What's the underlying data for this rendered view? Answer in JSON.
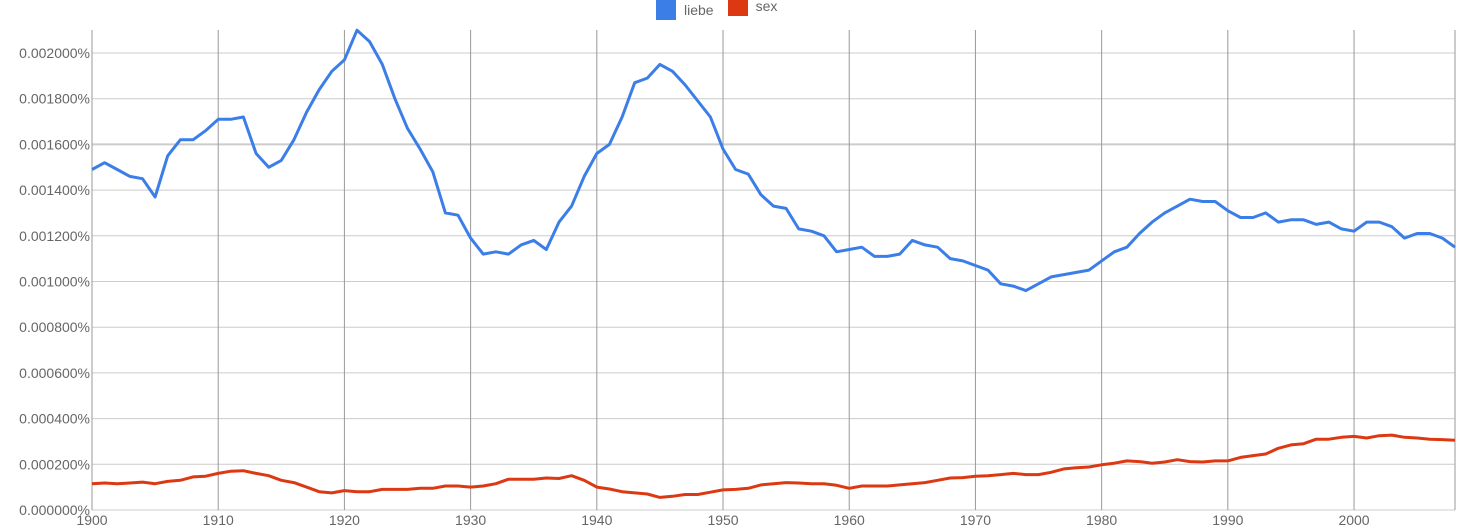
{
  "chart_data": {
    "type": "line",
    "title": "",
    "xlabel": "",
    "ylabel": "",
    "xlim": [
      1900,
      2008
    ],
    "ylim": [
      0,
      0.0021
    ],
    "x_ticks": [
      1900,
      1910,
      1920,
      1930,
      1940,
      1950,
      1960,
      1970,
      1980,
      1990,
      2000
    ],
    "x_tick_labels": [
      "1900",
      "1910",
      "1920",
      "1930",
      "1940",
      "1950",
      "1960",
      "1970",
      "1980",
      "1990",
      "2000"
    ],
    "y_ticks": [
      0,
      0.0002,
      0.0004,
      0.0006,
      0.0008,
      0.001,
      0.0012,
      0.0014,
      0.0016,
      0.0018,
      0.002
    ],
    "y_tick_labels": [
      "0.000000%",
      "0.000200%",
      "0.000400%",
      "0.000600%",
      "0.000800%",
      "0.001000%",
      "0.001200%",
      "0.001400%",
      "0.001600%",
      "0.001800%",
      "0.002000%"
    ],
    "grid": true,
    "legend_position": "top",
    "series": [
      {
        "name": "liebe",
        "color": "#3b7ee8",
        "points": [
          [
            1900,
            0.00149
          ],
          [
            1901,
            0.00152
          ],
          [
            1902,
            0.00149
          ],
          [
            1903,
            0.00146
          ],
          [
            1904,
            0.00145
          ],
          [
            1905,
            0.00137
          ],
          [
            1906,
            0.00155
          ],
          [
            1907,
            0.00162
          ],
          [
            1908,
            0.00162
          ],
          [
            1909,
            0.00166
          ],
          [
            1910,
            0.00171
          ],
          [
            1911,
            0.00171
          ],
          [
            1912,
            0.00172
          ],
          [
            1913,
            0.00156
          ],
          [
            1914,
            0.0015
          ],
          [
            1915,
            0.00153
          ],
          [
            1916,
            0.00162
          ],
          [
            1917,
            0.00174
          ],
          [
            1918,
            0.00184
          ],
          [
            1919,
            0.00192
          ],
          [
            1920,
            0.00197
          ],
          [
            1921,
            0.0021
          ],
          [
            1922,
            0.00205
          ],
          [
            1923,
            0.00195
          ],
          [
            1924,
            0.0018
          ],
          [
            1925,
            0.00167
          ],
          [
            1926,
            0.00158
          ],
          [
            1927,
            0.00148
          ],
          [
            1928,
            0.0013
          ],
          [
            1929,
            0.00129
          ],
          [
            1930,
            0.00119
          ],
          [
            1931,
            0.00112
          ],
          [
            1932,
            0.00113
          ],
          [
            1933,
            0.00112
          ],
          [
            1934,
            0.00116
          ],
          [
            1935,
            0.00118
          ],
          [
            1936,
            0.00114
          ],
          [
            1937,
            0.00126
          ],
          [
            1938,
            0.00133
          ],
          [
            1939,
            0.00146
          ],
          [
            1940,
            0.00156
          ],
          [
            1941,
            0.0016
          ],
          [
            1942,
            0.00172
          ],
          [
            1943,
            0.00187
          ],
          [
            1944,
            0.00189
          ],
          [
            1945,
            0.00195
          ],
          [
            1946,
            0.00192
          ],
          [
            1947,
            0.00186
          ],
          [
            1948,
            0.00179
          ],
          [
            1949,
            0.00172
          ],
          [
            1950,
            0.00158
          ],
          [
            1951,
            0.00149
          ],
          [
            1952,
            0.00147
          ],
          [
            1953,
            0.00138
          ],
          [
            1954,
            0.00133
          ],
          [
            1955,
            0.00132
          ],
          [
            1956,
            0.00123
          ],
          [
            1957,
            0.00122
          ],
          [
            1958,
            0.0012
          ],
          [
            1959,
            0.00113
          ],
          [
            1960,
            0.00114
          ],
          [
            1961,
            0.00115
          ],
          [
            1962,
            0.00111
          ],
          [
            1963,
            0.00111
          ],
          [
            1964,
            0.00112
          ],
          [
            1965,
            0.00118
          ],
          [
            1966,
            0.00116
          ],
          [
            1967,
            0.00115
          ],
          [
            1968,
            0.0011
          ],
          [
            1969,
            0.00109
          ],
          [
            1970,
            0.00107
          ],
          [
            1971,
            0.00105
          ],
          [
            1972,
            0.00099
          ],
          [
            1973,
            0.00098
          ],
          [
            1974,
            0.00096
          ],
          [
            1975,
            0.00099
          ],
          [
            1976,
            0.00102
          ],
          [
            1977,
            0.00103
          ],
          [
            1978,
            0.00104
          ],
          [
            1979,
            0.00105
          ],
          [
            1980,
            0.00109
          ],
          [
            1981,
            0.00113
          ],
          [
            1982,
            0.00115
          ],
          [
            1983,
            0.00121
          ],
          [
            1984,
            0.00126
          ],
          [
            1985,
            0.0013
          ],
          [
            1986,
            0.00133
          ],
          [
            1987,
            0.00136
          ],
          [
            1988,
            0.00135
          ],
          [
            1989,
            0.00135
          ],
          [
            1990,
            0.00131
          ],
          [
            1991,
            0.00128
          ],
          [
            1992,
            0.00128
          ],
          [
            1993,
            0.0013
          ],
          [
            1994,
            0.00126
          ],
          [
            1995,
            0.00127
          ],
          [
            1996,
            0.00127
          ],
          [
            1997,
            0.00125
          ],
          [
            1998,
            0.00126
          ],
          [
            1999,
            0.00123
          ],
          [
            2000,
            0.00122
          ],
          [
            2001,
            0.00126
          ],
          [
            2002,
            0.00126
          ],
          [
            2003,
            0.00124
          ],
          [
            2004,
            0.00119
          ],
          [
            2005,
            0.00121
          ],
          [
            2006,
            0.00121
          ],
          [
            2007,
            0.00119
          ],
          [
            2008,
            0.00115
          ]
        ]
      },
      {
        "name": "sex",
        "color": "#dc3912",
        "points": [
          [
            1900,
            0.000115
          ],
          [
            1901,
            0.000118
          ],
          [
            1902,
            0.000115
          ],
          [
            1903,
            0.000118
          ],
          [
            1904,
            0.000122
          ],
          [
            1905,
            0.000115
          ],
          [
            1906,
            0.000125
          ],
          [
            1907,
            0.00013
          ],
          [
            1908,
            0.000145
          ],
          [
            1909,
            0.000148
          ],
          [
            1910,
            0.00016
          ],
          [
            1911,
            0.00017
          ],
          [
            1912,
            0.000172
          ],
          [
            1913,
            0.00016
          ],
          [
            1914,
            0.00015
          ],
          [
            1915,
            0.00013
          ],
          [
            1916,
            0.00012
          ],
          [
            1917,
            0.0001
          ],
          [
            1918,
            8e-05
          ],
          [
            1919,
            7.5e-05
          ],
          [
            1920,
            8.5e-05
          ],
          [
            1921,
            8e-05
          ],
          [
            1922,
            8e-05
          ],
          [
            1923,
            9e-05
          ],
          [
            1924,
            9e-05
          ],
          [
            1925,
            9e-05
          ],
          [
            1926,
            9.5e-05
          ],
          [
            1927,
            9.5e-05
          ],
          [
            1928,
            0.000105
          ],
          [
            1929,
            0.000105
          ],
          [
            1930,
            0.0001
          ],
          [
            1931,
            0.000105
          ],
          [
            1932,
            0.000115
          ],
          [
            1933,
            0.000135
          ],
          [
            1934,
            0.000135
          ],
          [
            1935,
            0.000135
          ],
          [
            1936,
            0.00014
          ],
          [
            1937,
            0.000138
          ],
          [
            1938,
            0.00015
          ],
          [
            1939,
            0.00013
          ],
          [
            1940,
            0.0001
          ],
          [
            1941,
            9.2e-05
          ],
          [
            1942,
            8e-05
          ],
          [
            1943,
            7.5e-05
          ],
          [
            1944,
            7e-05
          ],
          [
            1945,
            5.5e-05
          ],
          [
            1946,
            6e-05
          ],
          [
            1947,
            6.8e-05
          ],
          [
            1948,
            6.8e-05
          ],
          [
            1949,
            7.8e-05
          ],
          [
            1950,
            8.8e-05
          ],
          [
            1951,
            9e-05
          ],
          [
            1952,
            9.5e-05
          ],
          [
            1953,
            0.00011
          ],
          [
            1954,
            0.000115
          ],
          [
            1955,
            0.00012
          ],
          [
            1956,
            0.000118
          ],
          [
            1957,
            0.000115
          ],
          [
            1958,
            0.000115
          ],
          [
            1959,
            0.000108
          ],
          [
            1960,
            9.5e-05
          ],
          [
            1961,
            0.000105
          ],
          [
            1962,
            0.000105
          ],
          [
            1963,
            0.000105
          ],
          [
            1964,
            0.00011
          ],
          [
            1965,
            0.000115
          ],
          [
            1966,
            0.00012
          ],
          [
            1967,
            0.00013
          ],
          [
            1968,
            0.00014
          ],
          [
            1969,
            0.000142
          ],
          [
            1970,
            0.000148
          ],
          [
            1971,
            0.00015
          ],
          [
            1972,
            0.000155
          ],
          [
            1973,
            0.00016
          ],
          [
            1974,
            0.000155
          ],
          [
            1975,
            0.000155
          ],
          [
            1976,
            0.000165
          ],
          [
            1977,
            0.00018
          ],
          [
            1978,
            0.000185
          ],
          [
            1979,
            0.000188
          ],
          [
            1980,
            0.000198
          ],
          [
            1981,
            0.000205
          ],
          [
            1982,
            0.000215
          ],
          [
            1983,
            0.000212
          ],
          [
            1984,
            0.000205
          ],
          [
            1985,
            0.00021
          ],
          [
            1986,
            0.00022
          ],
          [
            1987,
            0.000212
          ],
          [
            1988,
            0.00021
          ],
          [
            1989,
            0.000215
          ],
          [
            1990,
            0.000215
          ],
          [
            1991,
            0.00023
          ],
          [
            1992,
            0.000238
          ],
          [
            1993,
            0.000245
          ],
          [
            1994,
            0.00027
          ],
          [
            1995,
            0.000285
          ],
          [
            1996,
            0.00029
          ],
          [
            1997,
            0.00031
          ],
          [
            1998,
            0.00031
          ],
          [
            1999,
            0.000318
          ],
          [
            2000,
            0.000322
          ],
          [
            2001,
            0.000315
          ],
          [
            2002,
            0.000325
          ],
          [
            2003,
            0.000328
          ],
          [
            2004,
            0.000318
          ],
          [
            2005,
            0.000315
          ],
          [
            2006,
            0.00031
          ],
          [
            2007,
            0.000308
          ],
          [
            2008,
            0.000305
          ]
        ]
      }
    ]
  }
}
